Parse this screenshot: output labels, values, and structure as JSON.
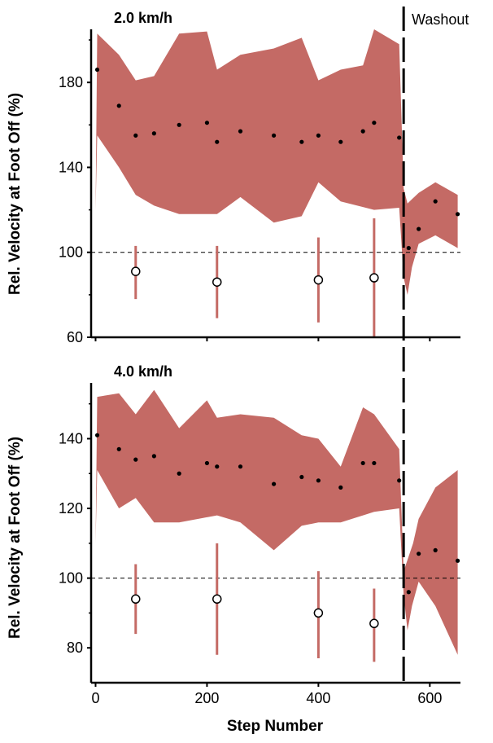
{
  "colors": {
    "band": "#c46a65",
    "errorbar": "#c46a65",
    "points": "#000000",
    "axis": "#000000"
  },
  "chart_data": [
    {
      "type": "scatter",
      "title": "2.0 km/h",
      "xlabel": "",
      "ylabel": "Rel. Velocity at Foot Off (%)",
      "xlim": [
        -8,
        655
      ],
      "ylim": [
        60,
        205
      ],
      "yticks": [
        60,
        100,
        140,
        180
      ],
      "xticks": [
        0,
        200,
        400,
        600
      ],
      "reference_line": 100,
      "washout_step": 553,
      "washout_label": "Washout",
      "band": {
        "upper": [
          [
            0,
            120
          ],
          [
            3,
            203
          ],
          [
            42,
            193
          ],
          [
            72,
            181
          ],
          [
            105,
            183
          ],
          [
            150,
            203
          ],
          [
            200,
            204
          ],
          [
            218,
            186
          ],
          [
            260,
            193
          ],
          [
            320,
            196
          ],
          [
            370,
            201
          ],
          [
            400,
            181
          ],
          [
            440,
            186
          ],
          [
            480,
            188
          ],
          [
            500,
            205
          ],
          [
            545,
            198
          ],
          [
            553,
            130
          ],
          [
            560,
            123
          ],
          [
            580,
            128
          ],
          [
            610,
            133
          ],
          [
            650,
            127
          ]
        ],
        "lower": [
          [
            650,
            102
          ],
          [
            610,
            108
          ],
          [
            580,
            104
          ],
          [
            568,
            93
          ],
          [
            560,
            80
          ],
          [
            553,
            88
          ],
          [
            545,
            121
          ],
          [
            500,
            120
          ],
          [
            440,
            124
          ],
          [
            400,
            133
          ],
          [
            370,
            117
          ],
          [
            320,
            114
          ],
          [
            260,
            126
          ],
          [
            218,
            118
          ],
          [
            150,
            118
          ],
          [
            105,
            122
          ],
          [
            72,
            127
          ],
          [
            42,
            140
          ],
          [
            3,
            155
          ],
          [
            0,
            120
          ]
        ]
      },
      "mean_points": [
        [
          3,
          186
        ],
        [
          42,
          169
        ],
        [
          72,
          155
        ],
        [
          105,
          156
        ],
        [
          150,
          160
        ],
        [
          200,
          161
        ],
        [
          218,
          152
        ],
        [
          260,
          157
        ],
        [
          320,
          155
        ],
        [
          370,
          152
        ],
        [
          400,
          155
        ],
        [
          440,
          152
        ],
        [
          480,
          157
        ],
        [
          500,
          161
        ],
        [
          545,
          154
        ],
        [
          562,
          102
        ],
        [
          580,
          111
        ],
        [
          610,
          124
        ],
        [
          650,
          118
        ]
      ],
      "open_points": [
        {
          "x": 72,
          "y": 91,
          "low": 78,
          "high": 103
        },
        {
          "x": 218,
          "y": 86,
          "low": 69,
          "high": 103
        },
        {
          "x": 400,
          "y": 87,
          "low": 67,
          "high": 107
        },
        {
          "x": 500,
          "y": 88,
          "low": 60,
          "high": 116
        }
      ]
    },
    {
      "type": "scatter",
      "title": "4.0 km/h",
      "xlabel": "Step Number",
      "ylabel": "Rel. Velocity at Foot Off (%)",
      "xlim": [
        -8,
        655
      ],
      "ylim": [
        70,
        156
      ],
      "yticks": [
        80,
        100,
        120,
        140
      ],
      "xticks": [
        0,
        200,
        400,
        600
      ],
      "reference_line": 100,
      "washout_step": 553,
      "band": {
        "upper": [
          [
            0,
            110
          ],
          [
            3,
            152
          ],
          [
            42,
            153
          ],
          [
            72,
            147
          ],
          [
            105,
            154
          ],
          [
            150,
            143
          ],
          [
            200,
            151
          ],
          [
            218,
            146
          ],
          [
            260,
            147
          ],
          [
            320,
            146
          ],
          [
            370,
            141
          ],
          [
            400,
            140
          ],
          [
            440,
            132
          ],
          [
            480,
            149
          ],
          [
            500,
            147
          ],
          [
            545,
            137
          ],
          [
            553,
            102
          ],
          [
            570,
            110
          ],
          [
            580,
            117
          ],
          [
            610,
            126
          ],
          [
            650,
            131
          ]
        ],
        "lower": [
          [
            650,
            78
          ],
          [
            610,
            92
          ],
          [
            580,
            99
          ],
          [
            568,
            92
          ],
          [
            560,
            85
          ],
          [
            553,
            95
          ],
          [
            545,
            120
          ],
          [
            500,
            119
          ],
          [
            480,
            118
          ],
          [
            440,
            116
          ],
          [
            400,
            116
          ],
          [
            370,
            115
          ],
          [
            320,
            108
          ],
          [
            260,
            116
          ],
          [
            218,
            118
          ],
          [
            150,
            116
          ],
          [
            105,
            116
          ],
          [
            72,
            123
          ],
          [
            42,
            120
          ],
          [
            3,
            131
          ],
          [
            0,
            110
          ]
        ]
      },
      "mean_points": [
        [
          3,
          141
        ],
        [
          42,
          137
        ],
        [
          72,
          134
        ],
        [
          105,
          135
        ],
        [
          150,
          130
        ],
        [
          200,
          133
        ],
        [
          218,
          132
        ],
        [
          260,
          132
        ],
        [
          320,
          127
        ],
        [
          370,
          129
        ],
        [
          400,
          128
        ],
        [
          440,
          126
        ],
        [
          480,
          133
        ],
        [
          500,
          133
        ],
        [
          545,
          128
        ],
        [
          562,
          96
        ],
        [
          580,
          107
        ],
        [
          610,
          108
        ],
        [
          650,
          105
        ]
      ],
      "open_points": [
        {
          "x": 72,
          "y": 94,
          "low": 84,
          "high": 104
        },
        {
          "x": 218,
          "y": 94,
          "low": 78,
          "high": 110
        },
        {
          "x": 400,
          "y": 90,
          "low": 77,
          "high": 102
        },
        {
          "x": 500,
          "y": 87,
          "low": 76,
          "high": 97
        }
      ]
    }
  ]
}
